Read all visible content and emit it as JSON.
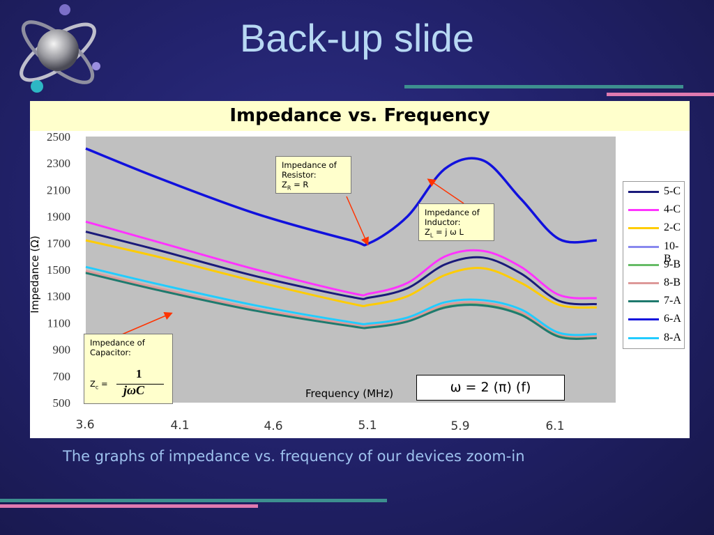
{
  "slide": {
    "title": "Back-up slide",
    "caption": "The graphs of impedance vs. frequency of our devices zoom-in"
  },
  "chart_data": {
    "type": "line",
    "title": "Impedance vs. Frequency",
    "xlabel": "Frequency (MHz)",
    "ylabel": "Impedance (Ω)",
    "xlim": [
      3.6,
      6.4
    ],
    "ylim": [
      500,
      2500
    ],
    "y_ticks": [
      "2500",
      "2300",
      "2100",
      "1900",
      "1700",
      "1500",
      "1300",
      "1100",
      "900",
      "700",
      "500"
    ],
    "x_ticks": [
      "3.6",
      "4.1",
      "4.6",
      "5.1",
      "5.9",
      "6.1"
    ],
    "grid": false,
    "legend_position": "right",
    "series": [
      {
        "name": "5-C",
        "color": "#1a1a7a",
        "x": [
          3.6,
          4.0,
          4.5,
          5.0,
          5.1,
          5.3,
          5.5,
          5.7,
          5.9,
          6.1,
          6.3
        ],
        "y": [
          1785,
          1640,
          1450,
          1295,
          1290,
          1360,
          1540,
          1590,
          1470,
          1265,
          1240
        ]
      },
      {
        "name": "4-C",
        "color": "#ff33ff",
        "x": [
          3.6,
          4.0,
          4.5,
          5.0,
          5.1,
          5.3,
          5.5,
          5.7,
          5.9,
          6.1,
          6.3
        ],
        "y": [
          1860,
          1700,
          1500,
          1325,
          1320,
          1400,
          1600,
          1640,
          1520,
          1310,
          1285
        ]
      },
      {
        "name": "2-C",
        "color": "#ffcc00",
        "x": [
          3.6,
          4.0,
          4.5,
          5.0,
          5.1,
          5.3,
          5.5,
          5.7,
          5.9,
          6.1,
          6.3
        ],
        "y": [
          1720,
          1590,
          1410,
          1245,
          1235,
          1300,
          1460,
          1510,
          1400,
          1235,
          1215
        ]
      },
      {
        "name": "10-B",
        "color": "#8888ee",
        "x": [
          3.6,
          4.0,
          4.5,
          5.0,
          5.1,
          5.3,
          5.5,
          5.7,
          5.9,
          6.1,
          6.3
        ],
        "y": [
          1485,
          1350,
          1200,
          1085,
          1075,
          1120,
          1225,
          1240,
          1170,
          1010,
          995
        ]
      },
      {
        "name": "9-B",
        "color": "#66bb66",
        "x": [
          3.6,
          4.0,
          4.5,
          5.0,
          5.1,
          5.3,
          5.5,
          5.7,
          5.9,
          6.1,
          6.3
        ],
        "y": [
          1480,
          1345,
          1195,
          1080,
          1070,
          1115,
          1220,
          1235,
          1165,
          1005,
          990
        ]
      },
      {
        "name": "8-B",
        "color": "#dd9999",
        "x": [
          3.6,
          4.0,
          4.5,
          5.0,
          5.1,
          5.3,
          5.5,
          5.7,
          5.9,
          6.1,
          6.3
        ],
        "y": [
          1490,
          1355,
          1205,
          1090,
          1080,
          1125,
          1235,
          1250,
          1180,
          1015,
          1000
        ]
      },
      {
        "name": "7-A",
        "color": "#1f7a6e",
        "x": [
          3.6,
          4.0,
          4.5,
          5.0,
          5.1,
          5.3,
          5.5,
          5.7,
          5.9,
          6.1,
          6.3
        ],
        "y": [
          1475,
          1340,
          1190,
          1075,
          1065,
          1110,
          1215,
          1230,
          1160,
          995,
          985
        ]
      },
      {
        "name": "6-A",
        "color": "#1111dd",
        "x": [
          3.6,
          4.0,
          4.5,
          5.0,
          5.1,
          5.3,
          5.5,
          5.7,
          5.9,
          6.1,
          6.3
        ],
        "y": [
          2410,
          2180,
          1920,
          1720,
          1700,
          1900,
          2260,
          2320,
          2030,
          1730,
          1720
        ]
      },
      {
        "name": "8-A",
        "color": "#22ccff",
        "x": [
          3.6,
          4.0,
          4.5,
          5.0,
          5.1,
          5.3,
          5.5,
          5.7,
          5.9,
          6.1,
          6.3
        ],
        "y": [
          1520,
          1385,
          1230,
          1105,
          1095,
          1140,
          1255,
          1270,
          1200,
          1025,
          1015
        ]
      }
    ],
    "annotations": {
      "resistor": {
        "line1": "Impedance of",
        "line2": "Resistor:",
        "formula_prefix": "Z",
        "formula_sub": "R",
        "formula_suffix": " = R"
      },
      "inductor": {
        "line1": "Impedance of",
        "line2": "Inductor:",
        "formula_prefix": "Z",
        "formula_sub": "L",
        "formula_suffix": " = j ω L"
      },
      "capacitor": {
        "line1": "Impedance of",
        "line2": "Capacitor:",
        "formula_prefix": "Z",
        "formula_sub": "c",
        "formula_suffix": " =",
        "fraction_num": "1",
        "fraction_den": "jωC"
      },
      "omega": "ω = 2 (π) (f)"
    },
    "colors": {
      "plot_bg": "#c0c0c0",
      "arrow": "#ff3300",
      "title_bar": "#ffffcc"
    }
  }
}
